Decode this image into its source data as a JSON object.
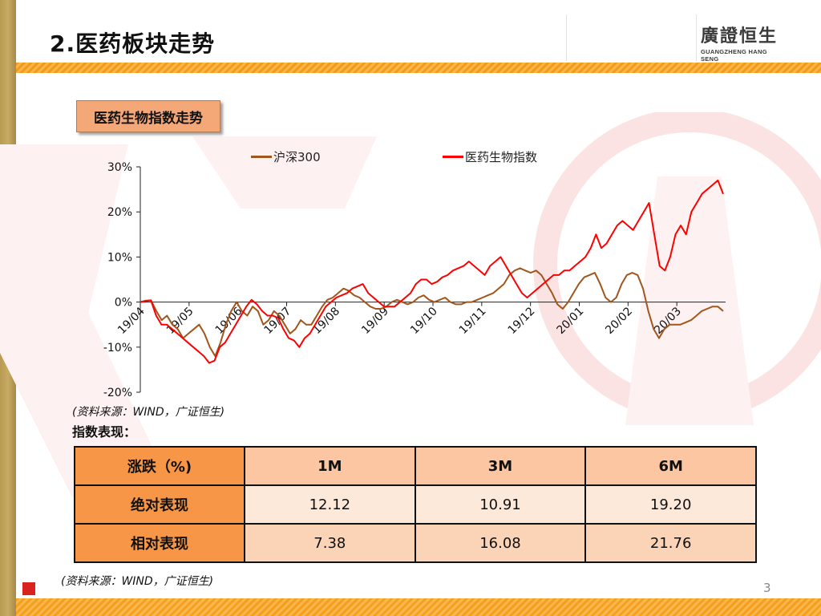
{
  "slide": {
    "title": "2.医药板块走势",
    "page_number": "3"
  },
  "logo": {
    "cn": "廣證恒生",
    "en": "GUANGZHENG HANG SENG"
  },
  "subtitle": "医药生物指数走势",
  "legend": {
    "series1": "沪深300",
    "series2": "医药生物指数"
  },
  "chart_source": "(资料来源：WIND，广证恒生)",
  "table_heading": "指数表现：",
  "table": {
    "header": [
      "涨跌（%)",
      "1M",
      "3M",
      "6M"
    ],
    "rows": [
      [
        "绝对表现",
        "12.12",
        "10.91",
        "19.20"
      ],
      [
        "相对表现",
        "7.38",
        "16.08",
        "21.76"
      ]
    ]
  },
  "footer_source": "(资料来源：WIND，广证恒生)",
  "colors": {
    "hs300": "#a0561c",
    "pharma": "#ff0000",
    "accent": "#f39a1a"
  },
  "chart_data": {
    "type": "line",
    "ylim": [
      -0.2,
      0.3
    ],
    "yticks": [
      "30%",
      "20%",
      "10%",
      "0%",
      "-10%",
      "-20%"
    ],
    "xlabels": [
      "19/04",
      "19/05",
      "19/06",
      "19/07",
      "19/08",
      "19/09",
      "19/10",
      "19/11",
      "19/12",
      "20/01",
      "20/02",
      "20/03"
    ],
    "series": [
      {
        "name": "沪深300",
        "values": [
          0.0,
          0.003,
          0.004,
          -0.02,
          -0.04,
          -0.03,
          -0.05,
          -0.06,
          -0.08,
          -0.07,
          -0.06,
          -0.05,
          -0.07,
          -0.1,
          -0.12,
          -0.09,
          -0.05,
          -0.02,
          0.0,
          -0.02,
          -0.03,
          -0.01,
          -0.02,
          -0.05,
          -0.04,
          -0.02,
          -0.03,
          -0.05,
          -0.07,
          -0.06,
          -0.04,
          -0.05,
          -0.05,
          -0.03,
          -0.01,
          0.005,
          0.01,
          0.02,
          0.03,
          0.025,
          0.015,
          0.01,
          0.0,
          -0.01,
          -0.015,
          -0.015,
          -0.01,
          0.0,
          0.005,
          0.0,
          -0.005,
          0.0,
          0.01,
          0.015,
          0.005,
          0.0,
          0.005,
          0.01,
          0.0,
          -0.005,
          -0.005,
          0.0,
          0.0,
          0.005,
          0.01,
          0.015,
          0.02,
          0.03,
          0.04,
          0.06,
          0.07,
          0.075,
          0.07,
          0.065,
          0.07,
          0.06,
          0.04,
          0.02,
          -0.005,
          -0.015,
          0.0,
          0.02,
          0.04,
          0.055,
          0.06,
          0.065,
          0.04,
          0.01,
          0.0,
          0.01,
          0.04,
          0.06,
          0.065,
          0.06,
          0.03,
          -0.02,
          -0.06,
          -0.08,
          -0.06,
          -0.05,
          -0.05,
          -0.05,
          -0.045,
          -0.04,
          -0.03,
          -0.02,
          -0.015,
          -0.01,
          -0.01,
          -0.02
        ]
      },
      {
        "name": "医药生物指数",
        "values": [
          0.0,
          0.002,
          0.004,
          -0.03,
          -0.05,
          -0.05,
          -0.06,
          -0.07,
          -0.08,
          -0.09,
          -0.1,
          -0.11,
          -0.12,
          -0.135,
          -0.13,
          -0.1,
          -0.09,
          -0.07,
          -0.05,
          -0.03,
          -0.01,
          0.005,
          -0.005,
          -0.02,
          -0.03,
          -0.03,
          -0.035,
          -0.06,
          -0.08,
          -0.085,
          -0.1,
          -0.08,
          -0.07,
          -0.05,
          -0.03,
          -0.01,
          0.0,
          0.01,
          0.015,
          0.02,
          0.03,
          0.035,
          0.04,
          0.02,
          0.01,
          0.0,
          -0.01,
          -0.01,
          -0.01,
          0.0,
          0.01,
          0.02,
          0.04,
          0.05,
          0.05,
          0.04,
          0.045,
          0.055,
          0.06,
          0.07,
          0.075,
          0.08,
          0.09,
          0.08,
          0.07,
          0.06,
          0.08,
          0.09,
          0.1,
          0.08,
          0.06,
          0.04,
          0.02,
          0.01,
          0.02,
          0.03,
          0.04,
          0.05,
          0.06,
          0.06,
          0.07,
          0.07,
          0.08,
          0.09,
          0.1,
          0.12,
          0.15,
          0.12,
          0.13,
          0.15,
          0.17,
          0.18,
          0.17,
          0.16,
          0.18,
          0.2,
          0.22,
          0.15,
          0.08,
          0.07,
          0.1,
          0.15,
          0.17,
          0.15,
          0.2,
          0.22,
          0.24,
          0.25,
          0.26,
          0.27,
          0.24
        ]
      }
    ]
  }
}
